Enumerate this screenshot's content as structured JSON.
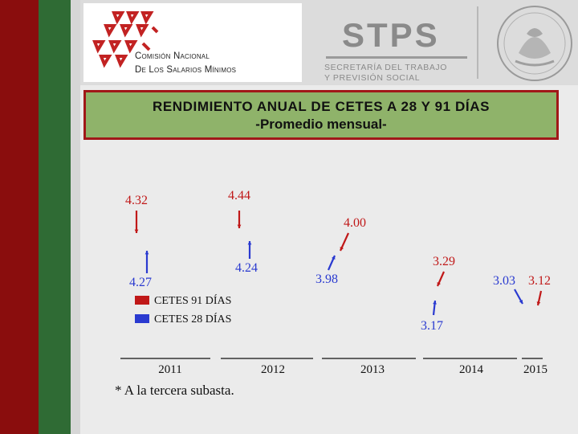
{
  "header": {
    "cns_line1": "Comisión Nacional",
    "cns_line2": "De Los Salarios Mínimos",
    "stps_title": "STPS",
    "stps_sub1": "SECRETARÍA DEL TRABAJO",
    "stps_sub2": "Y PREVISIÓN SOCIAL",
    "seal_icon": "mexico-coat-of-arms-seal",
    "cns_logo_icon": "cns-logo-icon"
  },
  "colors": {
    "cetes91": "#c01818",
    "cetes28": "#2a3ad0",
    "title_bg": "#8fb36a",
    "title_border": "#a01818"
  },
  "chart_data": {
    "type": "scatter",
    "title": "RENDIMIENTO ANUAL DE CETES A 28 Y 91  DÍAS",
    "subtitle": "-Promedio mensual-",
    "xlabel": "",
    "ylabel": "",
    "categories": [
      "2011",
      "2012",
      "2013",
      "2014",
      "2015"
    ],
    "legend_position": "left",
    "series": [
      {
        "name": "CETES 91 DÍAS",
        "color": "#c01818",
        "points": [
          {
            "x": "2011",
            "y": 4.32,
            "label": "4.32"
          },
          {
            "x": "2012",
            "y": 4.44,
            "label": "4.44"
          },
          {
            "x": "2013",
            "y": 4.0,
            "label": "4.00"
          },
          {
            "x": "2014",
            "y": 3.29,
            "label": "3.29"
          },
          {
            "x": "2015",
            "y": 3.12,
            "label": "3.12"
          }
        ]
      },
      {
        "name": "CETES 28 DÍAS",
        "color": "#2a3ad0",
        "points": [
          {
            "x": "2011",
            "y": 4.27,
            "label": "4.27"
          },
          {
            "x": "2012",
            "y": 4.24,
            "label": "4.24"
          },
          {
            "x": "2013",
            "y": 3.98,
            "label": "3.98"
          },
          {
            "x": "2014",
            "y": 3.17,
            "label": "3.17"
          },
          {
            "x": "2015",
            "y": 3.03,
            "label": "3.03"
          }
        ]
      }
    ]
  },
  "footnote": "* A la tercera subasta."
}
